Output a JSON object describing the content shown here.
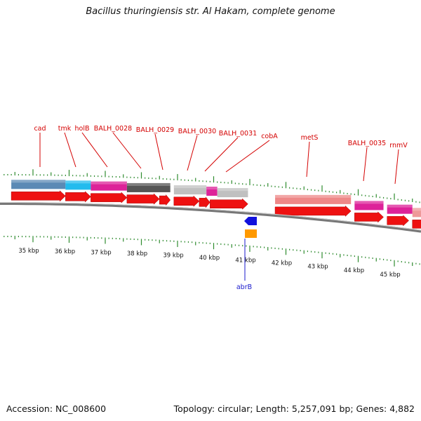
{
  "header": {
    "title": "Bacillus thuringiensis str. Al Hakam, complete genome"
  },
  "footer": {
    "accession": "Accession: NC_008600",
    "stats": "Topology: circular; Length: 5,257,091 bp; Genes: 4,882"
  },
  "scale": {
    "unit": "kbp",
    "labels": [
      "35 kbp",
      "36 kbp",
      "37 kbp",
      "38 kbp",
      "39 kbp",
      "40 kbp",
      "41 kbp",
      "42 kbp",
      "43 kbp",
      "44 kbp",
      "45 kbp"
    ]
  },
  "genes_forward": [
    {
      "name": "cad",
      "start_kbp": 34.8,
      "end_kbp": 36.2
    },
    {
      "name": "tmk",
      "start_kbp": 36.2,
      "end_kbp": 36.8
    },
    {
      "name": "holB",
      "start_kbp": 36.8,
      "end_kbp": 37.8
    },
    {
      "name": "BALH_0028",
      "start_kbp": 37.8,
      "end_kbp": 38.6
    },
    {
      "name": "BALH_0029",
      "start_kbp": 38.6,
      "end_kbp": 39.0
    },
    {
      "name": "BALH_0030",
      "start_kbp": 39.1,
      "end_kbp": 39.8
    },
    {
      "name": "BALH_0031",
      "start_kbp": 39.8,
      "end_kbp": 40.0
    },
    {
      "name": "cobA",
      "start_kbp": 40.0,
      "end_kbp": 40.95
    },
    {
      "name": "metS",
      "start_kbp": 41.7,
      "end_kbp": 43.8
    },
    {
      "name": "BALH_0035",
      "start_kbp": 43.9,
      "end_kbp": 44.7
    },
    {
      "name": "rnmV",
      "start_kbp": 44.8,
      "end_kbp": 45.4
    }
  ],
  "genes_reverse": [
    {
      "name": "abrB",
      "start_kbp": 40.8,
      "end_kbp": 41.1
    }
  ],
  "colors": {
    "cds_arrow": "#ee1111",
    "neg_arrow": "#1111dd",
    "neg_block": "#ff9900",
    "label_fwd": "#d40000",
    "label_rev": "#1a1acc",
    "backbone": "#888888",
    "tick": "#2e8b2e"
  }
}
